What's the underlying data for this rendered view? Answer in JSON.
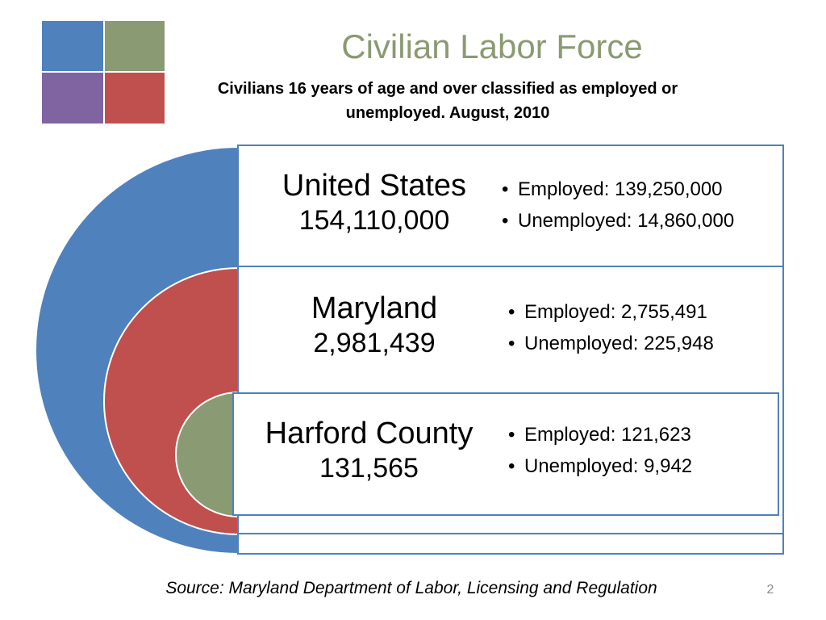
{
  "slide": {
    "title": "Civilian Labor Force",
    "subtitle": "Civilians 16 years of age and over classified as employed or unemployed. August, 2010",
    "source": "Source: Maryland Department of Labor, Licensing and Regulation",
    "page_number": "2"
  },
  "logo_colors": [
    "#4f81bd",
    "#8a9a72",
    "#8064a2",
    "#c0504d"
  ],
  "ring_colors": {
    "outer": "#4f81bd",
    "middle": "#c0504d",
    "inner": "#8a9a72",
    "panel_border": "#4f81bd"
  },
  "levels": [
    {
      "name": "United States",
      "total": "154,110,000",
      "employed": "Employed: 139,250,000",
      "unemployed": "Unemployed: 14,860,000"
    },
    {
      "name": "Maryland",
      "total": "2,981,439",
      "employed": "Employed: 2,755,491",
      "unemployed": "Unemployed: 225,948"
    },
    {
      "name": "Harford County",
      "total": "131,565",
      "employed": "Employed: 121,623",
      "unemployed": "Unemployed: 9,942"
    }
  ]
}
